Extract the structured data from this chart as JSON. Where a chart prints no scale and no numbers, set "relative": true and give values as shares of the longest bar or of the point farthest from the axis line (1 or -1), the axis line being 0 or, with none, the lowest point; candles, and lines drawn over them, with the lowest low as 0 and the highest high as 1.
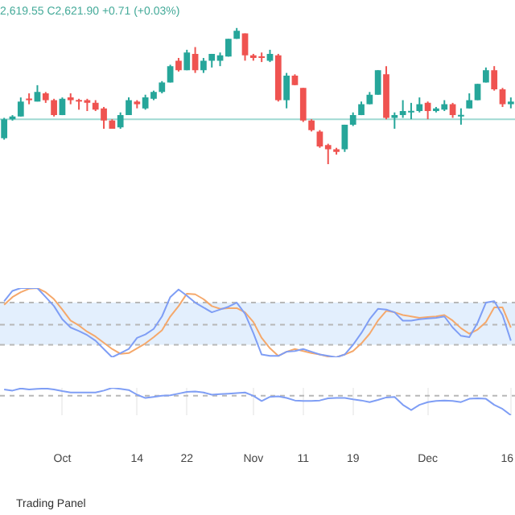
{
  "chart_data": [
    {
      "type": "candlestick",
      "subtitle": "2,619.55 C2,621.90 +0.71 (+0.03%)",
      "relative": true,
      "tick_labels": false,
      "legend": false,
      "categories": [
        null,
        null,
        null,
        null,
        null,
        null,
        null,
        null,
        null,
        null,
        null,
        null,
        null,
        null,
        null,
        null,
        null,
        null,
        null,
        null,
        null,
        null,
        null,
        null,
        null,
        null,
        null,
        null,
        null,
        null,
        null,
        null,
        null,
        null,
        null,
        null,
        null,
        null,
        null,
        null,
        null,
        null,
        null,
        null,
        null,
        null,
        null,
        null,
        null,
        null,
        null,
        null,
        null,
        null,
        null,
        null,
        null,
        null,
        null,
        null,
        null,
        null
      ],
      "ohlc": [
        [
          0.19,
          0.34,
          0.18,
          0.33
        ],
        [
          0.33,
          0.36,
          0.32,
          0.35
        ],
        [
          0.35,
          0.49,
          0.35,
          0.46
        ],
        [
          0.48,
          0.52,
          0.44,
          0.47
        ],
        [
          0.46,
          0.58,
          0.46,
          0.53
        ],
        [
          0.52,
          0.53,
          0.45,
          0.47
        ],
        [
          0.47,
          0.48,
          0.35,
          0.36
        ],
        [
          0.36,
          0.49,
          0.36,
          0.48
        ],
        [
          0.49,
          0.52,
          0.44,
          0.47
        ],
        [
          0.47,
          0.48,
          0.4,
          0.46
        ],
        [
          0.47,
          0.48,
          0.39,
          0.45
        ],
        [
          0.45,
          0.47,
          0.39,
          0.4
        ],
        [
          0.41,
          0.42,
          0.26,
          0.32
        ],
        [
          0.32,
          0.33,
          0.26,
          0.26
        ],
        [
          0.27,
          0.38,
          0.26,
          0.36
        ],
        [
          0.36,
          0.49,
          0.36,
          0.47
        ],
        [
          0.46,
          0.47,
          0.41,
          0.44
        ],
        [
          0.41,
          0.51,
          0.4,
          0.49
        ],
        [
          0.48,
          0.54,
          0.47,
          0.53
        ],
        [
          0.53,
          0.61,
          0.52,
          0.6
        ],
        [
          0.6,
          0.73,
          0.6,
          0.72
        ],
        [
          0.76,
          0.78,
          0.68,
          0.69
        ],
        [
          0.69,
          0.84,
          0.69,
          0.82
        ],
        [
          0.81,
          0.86,
          0.67,
          0.69
        ],
        [
          0.69,
          0.78,
          0.67,
          0.76
        ],
        [
          0.76,
          0.81,
          0.71,
          0.81
        ],
        [
          0.76,
          0.82,
          0.72,
          0.8
        ],
        [
          0.79,
          0.92,
          0.79,
          0.92
        ],
        [
          0.92,
          1,
          0.92,
          0.98
        ],
        [
          0.96,
          0.96,
          0.76,
          0.8
        ],
        [
          0.8,
          0.81,
          0.76,
          0.78
        ],
        [
          0.79,
          0.82,
          0.75,
          0.78
        ],
        [
          0.76,
          0.84,
          0.75,
          0.81
        ],
        [
          0.8,
          0.81,
          0.46,
          0.47
        ],
        [
          0.47,
          0.67,
          0.41,
          0.65
        ],
        [
          0.65,
          0.66,
          0.58,
          0.58
        ],
        [
          0.56,
          0.56,
          0.31,
          0.32
        ],
        [
          0.32,
          0.33,
          0.24,
          0.25
        ],
        [
          0.24,
          0.25,
          0.12,
          0.13
        ],
        [
          0.14,
          0.15,
          0,
          0.11
        ],
        [
          0.11,
          0.12,
          0.07,
          0.09
        ],
        [
          0.11,
          0.29,
          0.09,
          0.29
        ],
        [
          0.29,
          0.38,
          0.28,
          0.36
        ],
        [
          0.36,
          0.46,
          0.36,
          0.44
        ],
        [
          0.44,
          0.53,
          0.44,
          0.51
        ],
        [
          0.51,
          0.69,
          0.51,
          0.69
        ],
        [
          0.66,
          0.72,
          0.33,
          0.34
        ],
        [
          0.34,
          0.38,
          0.26,
          0.36
        ],
        [
          0.36,
          0.47,
          0.34,
          0.39
        ],
        [
          0.38,
          0.45,
          0.33,
          0.39
        ],
        [
          0.39,
          0.49,
          0.38,
          0.44
        ],
        [
          0.45,
          0.46,
          0.33,
          0.39
        ],
        [
          0.39,
          0.42,
          0.38,
          0.41
        ],
        [
          0.4,
          0.47,
          0.39,
          0.44
        ],
        [
          0.44,
          0.45,
          0.34,
          0.36
        ],
        [
          0.35,
          0.41,
          0.29,
          0.36
        ],
        [
          0.41,
          0.52,
          0.41,
          0.47
        ],
        [
          0.47,
          0.59,
          0.47,
          0.59
        ],
        [
          0.6,
          0.71,
          0.6,
          0.69
        ],
        [
          0.69,
          0.72,
          0.54,
          0.55
        ],
        [
          0.55,
          0.56,
          0.42,
          0.44
        ],
        [
          0.44,
          0.49,
          0.41,
          0.46
        ]
      ],
      "ref_lines": [
        {
          "axis": "y",
          "value": 0.33,
          "color": "#9fd9d2",
          "line_style": "solid"
        }
      ]
    },
    {
      "type": "line",
      "relative": true,
      "tick_labels": false,
      "legend": false,
      "marker": "none",
      "categories": [
        null,
        null,
        null,
        null,
        null,
        null,
        null,
        null,
        null,
        null,
        null,
        null,
        null,
        null,
        null,
        null,
        null,
        null,
        null,
        null,
        null,
        null,
        null,
        null,
        null,
        null,
        null,
        null,
        null,
        null,
        null,
        null,
        null,
        null,
        null,
        null,
        null,
        null,
        null,
        null,
        null,
        null,
        null,
        null,
        null,
        null,
        null,
        null,
        null,
        null,
        null,
        null,
        null,
        null,
        null,
        null,
        null,
        null,
        null,
        null,
        null,
        null
      ],
      "series": [
        {
          "color": "#7f9ef5",
          "values": [
            0.81,
            0.96,
            1,
            1,
            1,
            0.87,
            0.74,
            0.55,
            0.43,
            0.38,
            0.32,
            0.24,
            0.12,
            0,
            0.06,
            0.12,
            0.28,
            0.33,
            0.41,
            0.59,
            0.87,
            0.98,
            0.89,
            0.79,
            0.72,
            0.65,
            0.69,
            0.73,
            0.79,
            0.63,
            0.35,
            0.04,
            0.02,
            0.02,
            0.08,
            0.09,
            0.12,
            0.08,
            0.04,
            0.02,
            0,
            0.04,
            0.18,
            0.35,
            0.55,
            0.7,
            0.69,
            0.65,
            0.53,
            0.53,
            0.55,
            0.56,
            0.57,
            0.59,
            0.43,
            0.31,
            0.29,
            0.5,
            0.79,
            0.81,
            0.61,
            0.24
          ]
        },
        {
          "color": "#f5a86b",
          "values": [
            0.76,
            0.87,
            0.94,
            0.99,
            1,
            0.94,
            0.84,
            0.69,
            0.53,
            0.46,
            0.37,
            0.3,
            0.21,
            0.12,
            0.05,
            0.06,
            0.13,
            0.2,
            0.29,
            0.39,
            0.59,
            0.74,
            0.92,
            0.91,
            0.84,
            0.74,
            0.7,
            0.71,
            0.71,
            0.65,
            0.51,
            0.28,
            0.13,
            0.02,
            0.08,
            0.12,
            0.09,
            0.06,
            0.04,
            0.01,
            0,
            0.04,
            0.09,
            0.2,
            0.34,
            0.53,
            0.67,
            0.65,
            0.61,
            0.59,
            0.57,
            0.58,
            0.59,
            0.61,
            0.53,
            0.42,
            0.34,
            0.4,
            0.51,
            0.72,
            0.72,
            0.43
          ]
        }
      ],
      "bands": [
        {
          "axis": "y",
          "from": 0.18,
          "to": 0.79,
          "color": "#e3effd"
        }
      ],
      "ref_lines": [
        {
          "axis": "y",
          "value": 0.79,
          "color": "#b8b8b8",
          "line_style": "dashed"
        },
        {
          "axis": "y",
          "value": 0.47,
          "color": "#b8b8b8",
          "line_style": "dashed"
        },
        {
          "axis": "y",
          "value": 0.18,
          "color": "#b8b8b8",
          "line_style": "dashed"
        }
      ]
    },
    {
      "type": "line",
      "relative": true,
      "grid": "x",
      "tick_labels": "x",
      "legend": false,
      "marker": "none",
      "categories": [
        null,
        null,
        null,
        null,
        null,
        null,
        null,
        "Oct",
        null,
        null,
        null,
        null,
        null,
        null,
        null,
        null,
        "14",
        null,
        null,
        null,
        null,
        null,
        "22",
        null,
        null,
        null,
        null,
        null,
        null,
        null,
        "Nov",
        null,
        null,
        null,
        null,
        null,
        "11",
        null,
        null,
        null,
        null,
        null,
        "19",
        null,
        null,
        null,
        null,
        null,
        null,
        null,
        null,
        "Dec",
        null,
        null,
        null,
        null,
        null,
        null,
        null,
        null,
        null,
        "16"
      ],
      "series": [
        {
          "color": "#7f9ef5",
          "values": [
            0.94,
            0.9,
            0.98,
            0.94,
            0.96,
            0.98,
            0.94,
            0.88,
            0.83,
            0.83,
            0.83,
            0.83,
            0.9,
            1,
            0.96,
            0.92,
            0.75,
            0.63,
            0.67,
            0.71,
            0.73,
            0.79,
            0.85,
            0.87,
            0.83,
            0.75,
            0.77,
            0.79,
            0.81,
            0.83,
            0.71,
            0.52,
            0.67,
            0.69,
            0.63,
            0.54,
            0.52,
            0.52,
            0.54,
            0.62,
            0.63,
            0.63,
            0.58,
            0.54,
            0.48,
            0.56,
            0.65,
            0.67,
            0.38,
            0.19,
            0.38,
            0.48,
            0.52,
            0.54,
            0.52,
            0.48,
            0.6,
            0.62,
            0.6,
            0.38,
            0.23,
            0
          ]
        }
      ],
      "ref_lines": [
        {
          "axis": "y",
          "value": 0.71,
          "color": "#b8b8b8",
          "line_style": "dashed"
        }
      ],
      "annotations": [
        "Trading Panel"
      ]
    }
  ]
}
